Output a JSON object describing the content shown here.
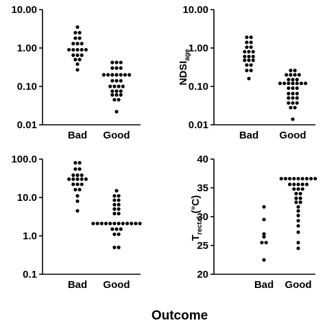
{
  "figure": {
    "xlabel": "Outcome"
  },
  "chart_data": [
    {
      "type": "scatter",
      "scale": "log",
      "ylim": [
        0.01,
        10
      ],
      "yticks": [
        "0.01",
        "0.10",
        "1.00",
        "10.00"
      ],
      "ytick_values": [
        0.01,
        0.1,
        1,
        10
      ],
      "ylabel": "",
      "ylabel_sub": "",
      "categories": [
        "Bad",
        "Good"
      ],
      "series": [
        {
          "category": "Bad",
          "points": [
            3.5,
            2.5,
            2.5,
            1.8,
            1.8,
            1.3,
            1.3,
            1.3,
            0.9,
            0.9,
            0.9,
            0.9,
            0.9,
            0.65,
            0.65,
            0.65,
            0.5,
            0.5,
            0.38,
            0.27
          ]
        },
        {
          "category": "Good",
          "points": [
            0.42,
            0.42,
            0.42,
            0.3,
            0.3,
            0.3,
            0.2,
            0.2,
            0.2,
            0.2,
            0.2,
            0.2,
            0.2,
            0.14,
            0.14,
            0.14,
            0.1,
            0.1,
            0.1,
            0.1,
            0.075,
            0.075,
            0.075,
            0.06,
            0.06,
            0.06,
            0.045,
            0.045,
            0.022
          ]
        }
      ]
    },
    {
      "type": "scatter",
      "scale": "log",
      "ylim": [
        0.01,
        10
      ],
      "yticks": [
        "0.01",
        "0.10",
        "1.00",
        "10.00"
      ],
      "ytick_values": [
        0.01,
        0.1,
        1,
        10
      ],
      "ylabel": "NDSI",
      "ylabel_sub": "age",
      "categories": [
        "Bad",
        "Good"
      ],
      "series": [
        {
          "category": "Bad",
          "points": [
            1.9,
            1.9,
            1.4,
            1.4,
            1.05,
            1.05,
            0.8,
            0.8,
            0.8,
            0.6,
            0.6,
            0.6,
            0.48,
            0.48,
            0.48,
            0.36,
            0.36,
            0.26,
            0.26,
            0.16
          ]
        },
        {
          "category": "Good",
          "points": [
            0.26,
            0.26,
            0.2,
            0.2,
            0.2,
            0.2,
            0.15,
            0.15,
            0.15,
            0.12,
            0.12,
            0.12,
            0.12,
            0.12,
            0.12,
            0.12,
            0.09,
            0.09,
            0.09,
            0.065,
            0.065,
            0.065,
            0.05,
            0.05,
            0.05,
            0.037,
            0.037,
            0.037,
            0.028,
            0.028,
            0.014
          ]
        }
      ]
    },
    {
      "type": "scatter",
      "scale": "log",
      "ylim": [
        0.1,
        100
      ],
      "yticks": [
        "0.1",
        "1.0",
        "10.0",
        "100.0"
      ],
      "ytick_values": [
        0.1,
        1,
        10,
        100
      ],
      "ylabel": "",
      "ylabel_sub": "",
      "categories": [
        "Bad",
        "Good"
      ],
      "series": [
        {
          "category": "Bad",
          "points": [
            80,
            80,
            55,
            55,
            38,
            38,
            38,
            30,
            30,
            30,
            30,
            30,
            22,
            22,
            22,
            16,
            16,
            11,
            8,
            4.5
          ]
        },
        {
          "category": "Good",
          "points": [
            15,
            11,
            11,
            8.5,
            8.5,
            6.5,
            6.5,
            5,
            5,
            3.8,
            3.8,
            2.1,
            2.1,
            2.1,
            2.1,
            2.1,
            2.1,
            2.1,
            2.1,
            2.1,
            2.1,
            2.1,
            2.1,
            1.5,
            1.5,
            1.5,
            1.1,
            1.1,
            0.5,
            0.5
          ]
        }
      ]
    },
    {
      "type": "scatter",
      "scale": "linear",
      "ylim": [
        20,
        40
      ],
      "yticks": [
        "20",
        "25",
        "30",
        "35",
        "40"
      ],
      "ytick_values": [
        20,
        25,
        30,
        35,
        40
      ],
      "ylabel": "T",
      "ylabel_sub": "rectal",
      "ylabel_rest": " (°C)",
      "categories": [
        "Bad",
        "Good"
      ],
      "series": [
        {
          "category": "Bad",
          "points": [
            31.7,
            29.5,
            27,
            26.5,
            25.5,
            25.5,
            22.5
          ]
        },
        {
          "category": "Good",
          "points": [
            36.6,
            36.6,
            36.6,
            36.6,
            36.6,
            36.6,
            36.6,
            36.6,
            36.6,
            35.6,
            35.6,
            35.6,
            35.6,
            35.6,
            34.8,
            34.8,
            34.8,
            34,
            34,
            33.2,
            33.2,
            32.5,
            32.5,
            31.7,
            31,
            30.2,
            29.3,
            28.4,
            27.3,
            25.5,
            24.5
          ]
        }
      ]
    }
  ]
}
